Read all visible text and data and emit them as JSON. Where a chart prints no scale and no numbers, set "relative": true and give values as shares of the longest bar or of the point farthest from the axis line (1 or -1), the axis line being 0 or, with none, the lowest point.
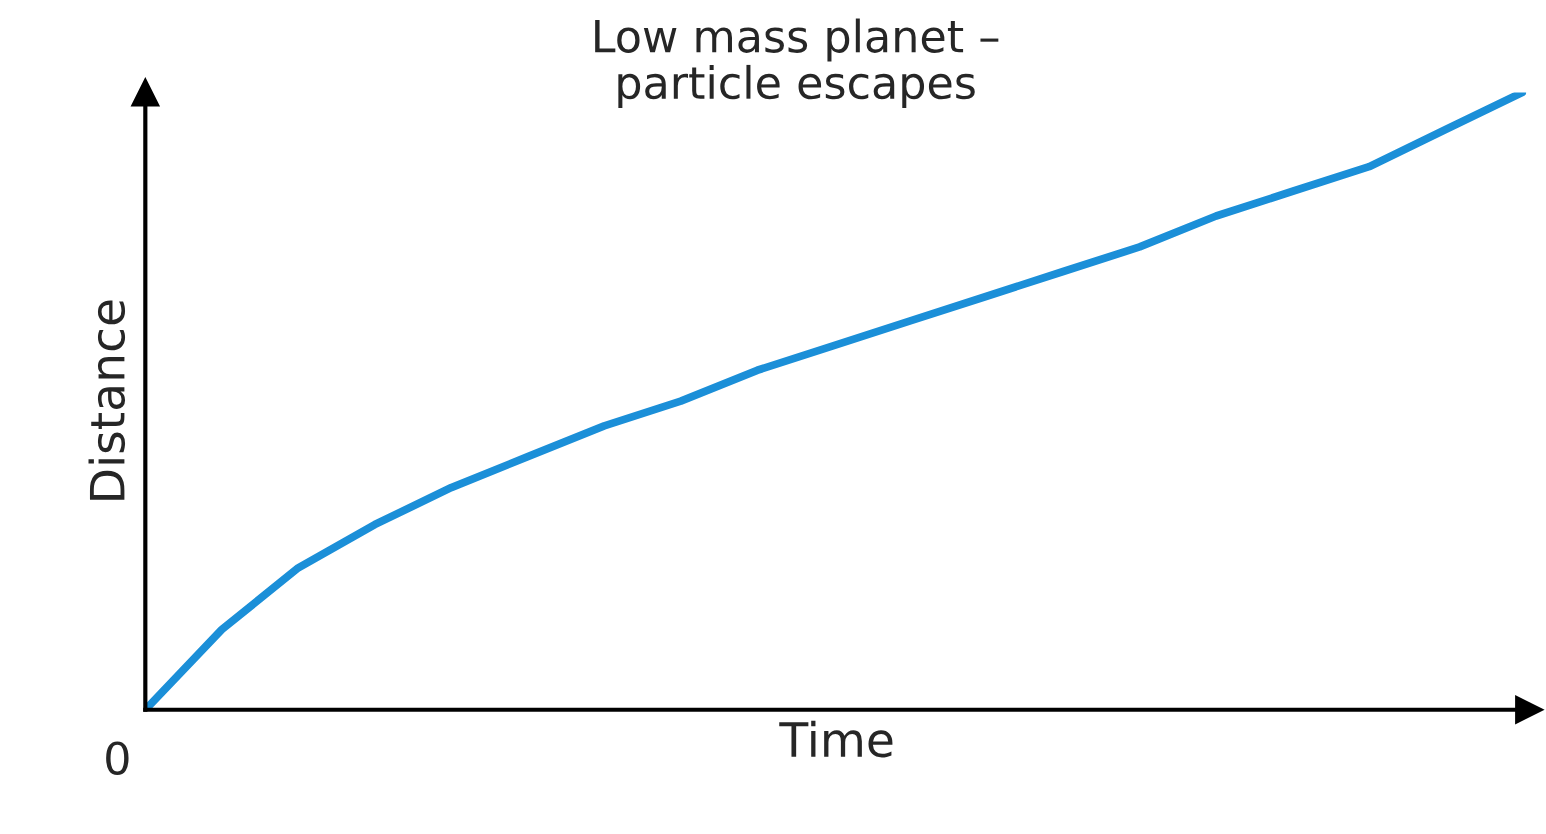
{
  "chart_data": {
    "type": "line",
    "relative": true,
    "xlabel": "Time",
    "ylabel": "Distance",
    "annotations": [
      "Low mass planet –\nparticle escapes",
      "0"
    ],
    "categories": [
      null,
      null,
      null,
      null,
      null,
      null,
      null,
      null,
      null,
      null,
      null,
      null,
      null,
      null,
      null,
      null,
      null,
      null,
      null
    ],
    "series": [
      {
        "color": "#1b8fd8",
        "values": [
          0,
          0.13,
          0.23,
          0.3,
          0.36,
          0.41,
          0.46,
          0.5,
          0.55,
          0.59,
          0.63,
          0.67,
          0.71,
          0.75,
          0.8,
          0.84,
          0.88,
          0.94,
          1.0
        ]
      }
    ],
    "legend": false,
    "marker": "none",
    "line_style": "solid",
    "tick_labels": false
  }
}
